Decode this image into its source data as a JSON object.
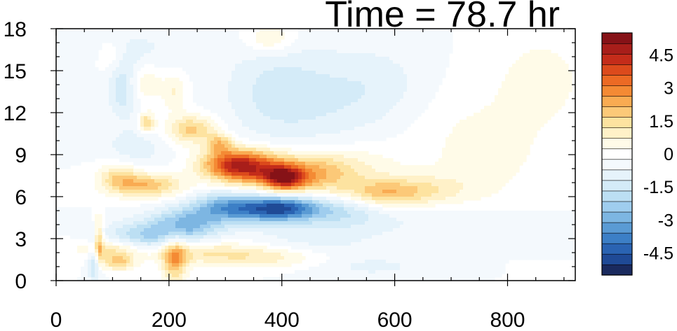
{
  "chart_data": {
    "type": "heatmap",
    "title": "Time = 78.7 hr",
    "xlabel": "",
    "ylabel": "",
    "xlim": [
      0,
      920
    ],
    "ylim": [
      0,
      18
    ],
    "x_ticks": [
      0,
      200,
      400,
      600,
      800
    ],
    "y_ticks": [
      0,
      3,
      6,
      9,
      12,
      15,
      18
    ],
    "colorbar": {
      "levels": [
        -5.5,
        -5,
        -4.5,
        -4,
        -3.5,
        -3,
        -2.5,
        -2,
        -1.5,
        -1,
        -0.5,
        0,
        0.5,
        1,
        1.5,
        2,
        2.5,
        3,
        3.5,
        4,
        4.5,
        5,
        5.5
      ],
      "labels": [
        "-4.5",
        "-3",
        "-1.5",
        "0",
        "1.5",
        "3",
        "4.5"
      ],
      "label_values": [
        -4.5,
        -3,
        -1.5,
        0,
        1.5,
        3,
        4.5
      ],
      "colors": [
        "#1a2a5e",
        "#1f4a96",
        "#2a63b2",
        "#3c7fc6",
        "#5a9bd4",
        "#7db6e2",
        "#9fcdee",
        "#bcdff3",
        "#d4ebf8",
        "#e6f3fb",
        "#f4f9fd",
        "#ffffff",
        "#fffbe8",
        "#fff1c8",
        "#fde3a0",
        "#fcc978",
        "#f9ab52",
        "#f48a34",
        "#ec6a24",
        "#dc4a1c",
        "#c42c1a",
        "#a81e1a",
        "#861217"
      ]
    },
    "features": [
      {
        "x": 310,
        "y": 8.3,
        "sx": 40,
        "sy": 0.8,
        "v": 3.5
      },
      {
        "x": 360,
        "y": 8.0,
        "sx": 45,
        "sy": 0.9,
        "v": 3.0
      },
      {
        "x": 405,
        "y": 7.3,
        "sx": 25,
        "sy": 0.6,
        "v": 4.0
      },
      {
        "x": 455,
        "y": 7.6,
        "sx": 45,
        "sy": 1.0,
        "v": 2.0
      },
      {
        "x": 240,
        "y": 10.8,
        "sx": 30,
        "sy": 0.7,
        "v": 2.2
      },
      {
        "x": 290,
        "y": 9.8,
        "sx": 15,
        "sy": 0.5,
        "v": 2.0
      },
      {
        "x": 160,
        "y": 6.8,
        "sx": 45,
        "sy": 0.6,
        "v": 2.4
      },
      {
        "x": 110,
        "y": 7.5,
        "sx": 25,
        "sy": 0.7,
        "v": 1.5
      },
      {
        "x": 580,
        "y": 6.2,
        "sx": 50,
        "sy": 0.7,
        "v": 2.0
      },
      {
        "x": 660,
        "y": 6.5,
        "sx": 60,
        "sy": 0.8,
        "v": 1.0
      },
      {
        "x": 520,
        "y": 8.0,
        "sx": 60,
        "sy": 1.2,
        "v": 1.0
      },
      {
        "x": 760,
        "y": 9.5,
        "sx": 90,
        "sy": 3.0,
        "v": 0.7
      },
      {
        "x": 860,
        "y": 14.5,
        "sx": 50,
        "sy": 2.0,
        "v": 0.8
      },
      {
        "x": 100,
        "y": 2.3,
        "sx": 40,
        "sy": 0.5,
        "v": 1.8
      },
      {
        "x": 260,
        "y": 2.0,
        "sx": 90,
        "sy": 0.6,
        "v": 1.5
      },
      {
        "x": 390,
        "y": 1.6,
        "sx": 70,
        "sy": 0.5,
        "v": 1.0
      },
      {
        "x": 210,
        "y": 1.5,
        "sx": 15,
        "sy": 1.2,
        "v": 2.5
      },
      {
        "x": 110,
        "y": 1.3,
        "sx": 20,
        "sy": 0.4,
        "v": 2.0
      },
      {
        "x": 150,
        "y": 14.2,
        "sx": 25,
        "sy": 1.0,
        "v": 1.2
      },
      {
        "x": 210,
        "y": 13.5,
        "sx": 15,
        "sy": 1.0,
        "v": 1.0
      },
      {
        "x": 160,
        "y": 11.3,
        "sx": 10,
        "sy": 0.5,
        "v": 2.0
      },
      {
        "x": 400,
        "y": 5.2,
        "sx": 45,
        "sy": 0.6,
        "v": -3.5
      },
      {
        "x": 330,
        "y": 5.0,
        "sx": 60,
        "sy": 0.7,
        "v": -2.0
      },
      {
        "x": 500,
        "y": 5.0,
        "sx": 60,
        "sy": 0.8,
        "v": -1.5
      },
      {
        "x": 230,
        "y": 4.0,
        "sx": 45,
        "sy": 0.8,
        "v": -2.5
      },
      {
        "x": 150,
        "y": 3.0,
        "sx": 50,
        "sy": 0.8,
        "v": -2.0
      },
      {
        "x": 300,
        "y": 5.5,
        "sx": 40,
        "sy": 0.7,
        "v": -1.5
      },
      {
        "x": 380,
        "y": 13.5,
        "sx": 60,
        "sy": 2.5,
        "v": -1.0
      },
      {
        "x": 480,
        "y": 13.0,
        "sx": 70,
        "sy": 2.5,
        "v": -0.8
      },
      {
        "x": 120,
        "y": 14.0,
        "sx": 20,
        "sy": 1.5,
        "v": -1.8
      },
      {
        "x": 580,
        "y": 14.0,
        "sx": 60,
        "sy": 2.0,
        "v": -0.6
      },
      {
        "x": 700,
        "y": 4.0,
        "sx": 120,
        "sy": 1.0,
        "v": -0.5
      },
      {
        "x": 140,
        "y": 9.5,
        "sx": 40,
        "sy": 1.0,
        "v": -0.8
      },
      {
        "x": 140,
        "y": 16.5,
        "sx": 70,
        "sy": 1.2,
        "v": -0.6
      },
      {
        "x": 450,
        "y": 3.0,
        "sx": 80,
        "sy": 1.0,
        "v": -0.7
      },
      {
        "x": 75,
        "y": 2.5,
        "sx": 6,
        "sy": 1.3,
        "v": 3.0
      },
      {
        "x": 70,
        "y": 1.5,
        "sx": 8,
        "sy": 1.2,
        "v": -2.5
      },
      {
        "x": 100,
        "y": 16.0,
        "sx": 20,
        "sy": 1.0,
        "v": 1.0
      },
      {
        "x": 380,
        "y": 17.3,
        "sx": 30,
        "sy": 0.8,
        "v": 1.2
      },
      {
        "x": 560,
        "y": 1.0,
        "sx": 80,
        "sy": 0.6,
        "v": -0.6
      }
    ]
  }
}
